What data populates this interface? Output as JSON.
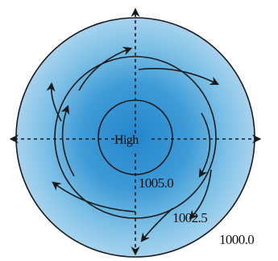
{
  "diagram": {
    "center_label": "High",
    "isobars": [
      {
        "label": "1005.0"
      },
      {
        "label": "1002.5"
      },
      {
        "label": "1000.0"
      }
    ],
    "colors": {
      "outer_ring": "#9ccdea",
      "middle_ring": "#5eaedf",
      "inner_core": "#2a8fd0",
      "line": "#1a1a1a"
    },
    "flow": "clockwise outward spiral",
    "axis_arrows": [
      "up",
      "down",
      "left",
      "right"
    ]
  }
}
